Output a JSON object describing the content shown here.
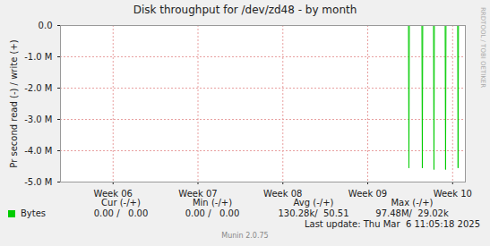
{
  "chart_data": {
    "type": "line",
    "title": "Disk throughput for /dev/zd48 - by month",
    "y_label": "Pr second read (-) / write (+)",
    "x": [
      5.38,
      9.48,
      9.485,
      9.49,
      9.638,
      9.643,
      9.648,
      9.775,
      9.78,
      9.785,
      9.912,
      9.917,
      9.922,
      10.059,
      10.064,
      10.069,
      10.15
    ],
    "series": [
      {
        "name": "Bytes",
        "color": "#00cc00",
        "values": [
          0,
          0,
          -4550000,
          0,
          0,
          -4550000,
          0,
          0,
          -4600000,
          0,
          0,
          -4600000,
          0,
          0,
          -4550000,
          0,
          0
        ]
      }
    ],
    "xlim": [
      5.38,
      10.15
    ],
    "xticks": [
      {
        "value": 6,
        "label": "Week 06"
      },
      {
        "value": 7,
        "label": "Week 07"
      },
      {
        "value": 8,
        "label": "Week 08"
      },
      {
        "value": 9,
        "label": "Week 09"
      },
      {
        "value": 10,
        "label": "Week 10"
      }
    ],
    "ylim": [
      -5000000,
      0
    ],
    "yticks": [
      {
        "value": 0,
        "label": "0.0"
      },
      {
        "value": -1000000,
        "label": "-1.0 M"
      },
      {
        "value": -2000000,
        "label": "-2.0 M"
      },
      {
        "value": -3000000,
        "label": "-3.0 M"
      },
      {
        "value": -4000000,
        "label": "-4.0 M"
      },
      {
        "value": -5000000,
        "label": "-5.0 M"
      }
    ],
    "grid": true,
    "legend_table": {
      "columns": [
        "Cur (-/+)",
        "Min (-/+)",
        "Avg (-/+)",
        "Max (-/+)"
      ],
      "cells": [
        "0.00 /   0.00",
        "0.00 /   0.00",
        "130.28k/  50.51",
        "97.48M/  29.02k"
      ]
    },
    "last_update": "Last update: Thu Mar  6 11:05:18 2025",
    "credit": "Munin 2.0.75",
    "watermark": "RRDTOOL / TOBI OETIKER"
  }
}
